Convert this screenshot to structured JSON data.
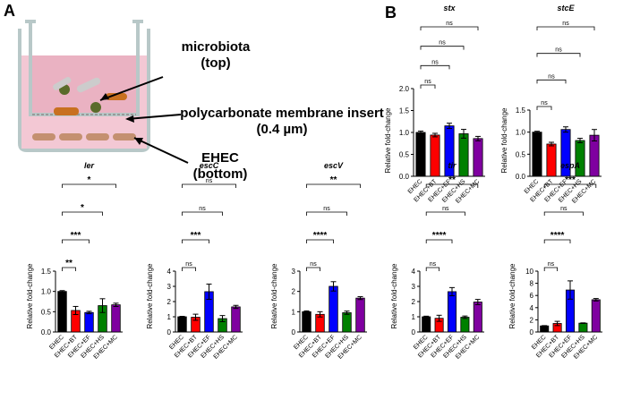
{
  "figure": {
    "panel_a": "A",
    "panel_b": "B",
    "microbiota": "microbiota (top)",
    "membrane": "polycarbonate membrane insert (0.4 µm)",
    "ehec": "EHEC (bottom)"
  },
  "chart_data": [
    {
      "type": "bar",
      "title": "stx",
      "y_label": "Relative fold-change",
      "categories": [
        "EHEC",
        "EHEC+BT",
        "EHEC+EF",
        "EHEC+HS",
        "EHEC+MC"
      ],
      "colors": [
        "#000000",
        "#ff0000",
        "#0000ff",
        "#008000",
        "#7f00a0"
      ],
      "values": [
        1.0,
        0.94,
        1.15,
        0.97,
        0.86
      ],
      "errors": [
        0.03,
        0.04,
        0.06,
        0.1,
        0.05
      ],
      "significance": [
        null,
        "ns",
        "ns",
        "ns",
        "ns"
      ],
      "ylim": [
        0,
        2
      ],
      "yticks": [
        {
          "value": 0,
          "label": "0.0"
        },
        {
          "value": 0.5,
          "label": "0.5"
        },
        {
          "value": 1,
          "label": "1.0"
        },
        {
          "value": 1.5,
          "label": "1.5"
        },
        {
          "value": 2,
          "label": "2.0"
        }
      ]
    },
    {
      "type": "bar",
      "title": "stcE",
      "y_label": "Relative fold-change",
      "categories": [
        "EHEC",
        "EHEC+BT",
        "EHEC+EF",
        "EHEC+HS",
        "EHEC+MC"
      ],
      "colors": [
        "#000000",
        "#ff0000",
        "#0000ff",
        "#008000",
        "#7f00a0"
      ],
      "values": [
        1.0,
        0.73,
        1.06,
        0.81,
        0.93
      ],
      "errors": [
        0.02,
        0.04,
        0.06,
        0.05,
        0.13
      ],
      "significance": [
        null,
        "ns",
        "ns",
        "ns",
        "ns"
      ],
      "ylim": [
        0,
        1.5
      ],
      "yticks": [
        {
          "value": 0,
          "label": "0.0"
        },
        {
          "value": 0.5,
          "label": "0.5"
        },
        {
          "value": 1,
          "label": "1.0"
        },
        {
          "value": 1.5,
          "label": "1.5"
        }
      ]
    },
    {
      "type": "bar",
      "title": "ler",
      "y_label": "Relative fold-change",
      "categories": [
        "EHEC",
        "EHEC+BT",
        "EHEC+EF",
        "EHEC+HS",
        "EHEC+MC"
      ],
      "colors": [
        "#000000",
        "#ff0000",
        "#0000ff",
        "#008000",
        "#7f00a0"
      ],
      "values": [
        1.0,
        0.53,
        0.48,
        0.65,
        0.67
      ],
      "errors": [
        0.02,
        0.1,
        0.03,
        0.17,
        0.04
      ],
      "significance": [
        null,
        "**",
        "***",
        "*",
        "*"
      ],
      "ylim": [
        0,
        1.5
      ],
      "yticks": [
        {
          "value": 0,
          "label": "0.0"
        },
        {
          "value": 0.5,
          "label": "0.5"
        },
        {
          "value": 1,
          "label": "1.0"
        },
        {
          "value": 1.5,
          "label": "1.5"
        }
      ]
    },
    {
      "type": "bar",
      "title": "escC",
      "y_label": "Relative fold-change",
      "categories": [
        "EHEC",
        "EHEC+BT",
        "EHEC+EF",
        "EHEC+HS",
        "EHEC+MC"
      ],
      "colors": [
        "#000000",
        "#ff0000",
        "#0000ff",
        "#008000",
        "#7f00a0"
      ],
      "values": [
        1.0,
        0.97,
        2.65,
        0.88,
        1.65
      ],
      "errors": [
        0.03,
        0.2,
        0.5,
        0.2,
        0.1
      ],
      "significance": [
        null,
        "ns",
        "***",
        "ns",
        "ns"
      ],
      "ylim": [
        0,
        4
      ],
      "yticks": [
        0,
        1,
        2,
        3,
        4
      ]
    },
    {
      "type": "bar",
      "title": "escV",
      "y_label": "Relative fold-change",
      "categories": [
        "EHEC",
        "EHEC+BT",
        "EHEC+EF",
        "EHEC+HS",
        "EHEC+MC"
      ],
      "colors": [
        "#000000",
        "#ff0000",
        "#0000ff",
        "#008000",
        "#7f00a0"
      ],
      "values": [
        1.0,
        0.87,
        2.25,
        0.95,
        1.67
      ],
      "errors": [
        0.04,
        0.13,
        0.23,
        0.08,
        0.07
      ],
      "significance": [
        null,
        "ns",
        "****",
        "ns",
        "**"
      ],
      "ylim": [
        0,
        3
      ],
      "yticks": [
        0,
        1,
        2,
        3
      ]
    },
    {
      "type": "bar",
      "title": "tir",
      "y_label": "Relative fold-change",
      "categories": [
        "EHEC",
        "EHEC+BT",
        "EHEC+EF",
        "EHEC+HS",
        "EHEC+MC"
      ],
      "colors": [
        "#000000",
        "#ff0000",
        "#0000ff",
        "#008000",
        "#7f00a0"
      ],
      "values": [
        1.0,
        0.9,
        2.65,
        0.97,
        1.97
      ],
      "errors": [
        0.04,
        0.2,
        0.27,
        0.08,
        0.17
      ],
      "significance": [
        null,
        "ns",
        "****",
        "ns",
        "**"
      ],
      "ylim": [
        0,
        4
      ],
      "yticks": [
        0,
        1,
        2,
        3,
        4
      ]
    },
    {
      "type": "bar",
      "title": "espA",
      "y_label": "Relative fold-change",
      "categories": [
        "EHEC",
        "EHEC+BT",
        "EHEC+EF",
        "EHEC+HS",
        "EHEC+MC"
      ],
      "colors": [
        "#000000",
        "#ff0000",
        "#0000ff",
        "#008000",
        "#7f00a0"
      ],
      "values": [
        1.0,
        1.4,
        6.9,
        1.45,
        5.3
      ],
      "errors": [
        0.05,
        0.35,
        1.5,
        0.05,
        0.2
      ],
      "significance": [
        null,
        "ns",
        "****",
        "ns",
        "***"
      ],
      "ylim": [
        0,
        10
      ],
      "yticks": [
        0,
        2,
        4,
        6,
        8,
        10
      ]
    }
  ]
}
